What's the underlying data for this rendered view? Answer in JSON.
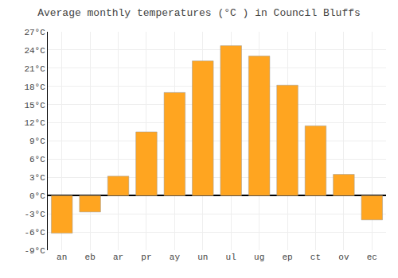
{
  "chart_data": {
    "type": "bar",
    "title": "Average monthly temperatures (°C ) in Council Bluffs",
    "categories": [
      "an",
      "eb",
      "ar",
      "pr",
      "ay",
      "un",
      "ul",
      "ug",
      "ep",
      "ct",
      "ov",
      "ec"
    ],
    "values": [
      -6.2,
      -2.7,
      3.2,
      10.5,
      17.0,
      22.2,
      24.7,
      23.0,
      18.2,
      11.5,
      3.5,
      -4.0
    ],
    "color": "#FFA520",
    "ylim": [
      -9,
      27
    ],
    "yticks": [
      {
        "value": -9,
        "label": "-9°C"
      },
      {
        "value": -6,
        "label": "-6°C"
      },
      {
        "value": -3,
        "label": "-3°C"
      },
      {
        "value": 0,
        "label": "0°C"
      },
      {
        "value": 3,
        "label": "3°C"
      },
      {
        "value": 6,
        "label": "6°C"
      },
      {
        "value": 9,
        "label": "9°C"
      },
      {
        "value": 12,
        "label": "12°C"
      },
      {
        "value": 15,
        "label": "15°C"
      },
      {
        "value": 18,
        "label": "18°C"
      },
      {
        "value": 21,
        "label": "21°C"
      },
      {
        "value": 24,
        "label": "24°C"
      },
      {
        "value": 27,
        "label": "27°C"
      }
    ],
    "grid": true
  }
}
